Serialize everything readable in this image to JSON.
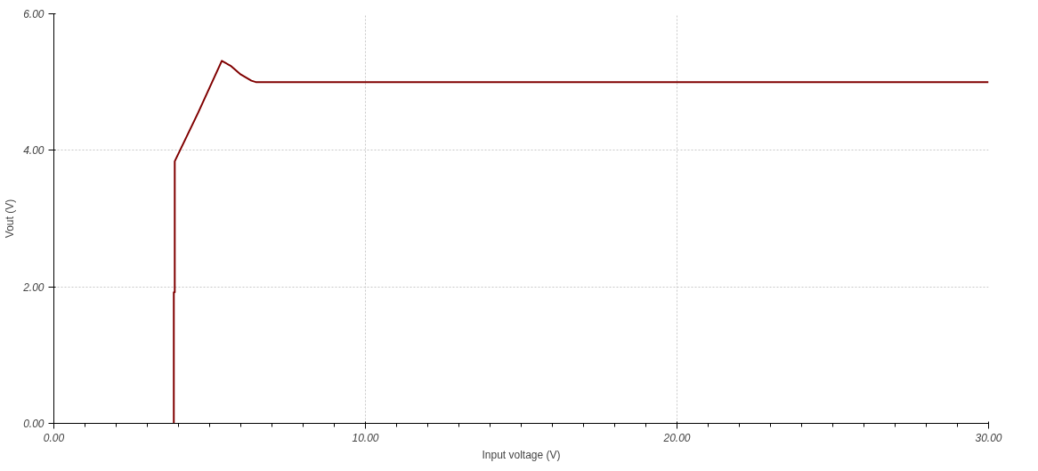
{
  "chart_data": {
    "type": "line",
    "xlabel": "Input voltage (V)",
    "ylabel": "Vout (V)",
    "x": [
      3.85,
      3.85,
      3.88,
      3.88,
      4.63,
      5.39,
      5.67,
      6.0,
      6.34,
      6.48,
      30
    ],
    "series": [
      {
        "color": "#800000",
        "values": [
          0,
          1.92,
          1.92,
          3.84,
          4.55,
          5.31,
          5.24,
          5.11,
          5.02,
          5.0,
          5.0
        ]
      }
    ],
    "xlim": [
      0,
      30
    ],
    "ylim": [
      0,
      6
    ],
    "xticks": [
      {
        "value": 0,
        "label": "0.00"
      },
      {
        "value": 10,
        "label": "10.00"
      },
      {
        "value": 20,
        "label": "20.00"
      },
      {
        "value": 30,
        "label": "30.00"
      }
    ],
    "yticks": [
      {
        "value": 0,
        "label": "0.00"
      },
      {
        "value": 2,
        "label": "2.00"
      },
      {
        "value": 4,
        "label": "4.00"
      },
      {
        "value": 6,
        "label": "6.00"
      }
    ],
    "grid": true,
    "marker": "none",
    "line_style": "solid"
  }
}
